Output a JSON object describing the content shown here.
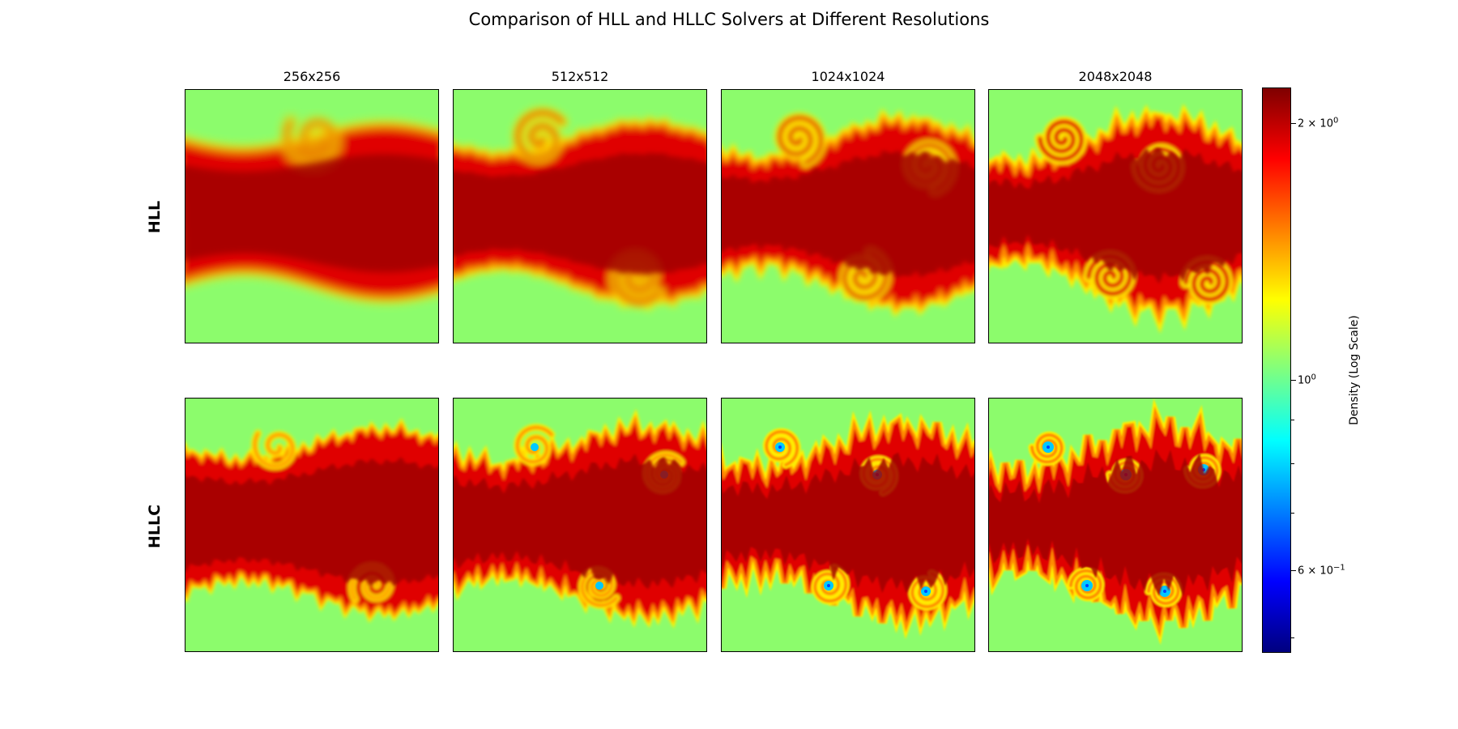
{
  "title": "Comparison of HLL and HLLC Solvers at Different Resolutions",
  "chart_data": {
    "type": "heatmap",
    "title": "Comparison of HLL and HLLC Solvers at Different Resolutions",
    "columns": [
      "256x256",
      "512x512",
      "1024x1024",
      "2048x2048"
    ],
    "rows": [
      "HLL",
      "HLLC"
    ],
    "field": "Density",
    "colormap": "jet",
    "colorbar": {
      "label": "Density (Log Scale)",
      "scale": "log",
      "range": [
        0.48,
        2.2
      ],
      "ticks": [
        {
          "value": 2,
          "base": "2 × 10",
          "exp": "0"
        },
        {
          "value": 1,
          "base": "10",
          "exp": "0"
        },
        {
          "value": 0.6,
          "base": "6 × 10",
          "exp": "−1"
        }
      ],
      "minor_ticks": [
        0.5,
        0.7,
        0.8,
        0.9
      ]
    },
    "background_density": 1.0,
    "stream_density": 2.0,
    "grid": false
  },
  "colors": {
    "ambient": "#8cfc6c",
    "interface": "#ffee00",
    "shear": "#ff8c00",
    "core": "#a00000",
    "core_edge": "#e00000",
    "vortex_eye": "#00c8ff",
    "vortex_eye_deep": "#0040ff"
  }
}
